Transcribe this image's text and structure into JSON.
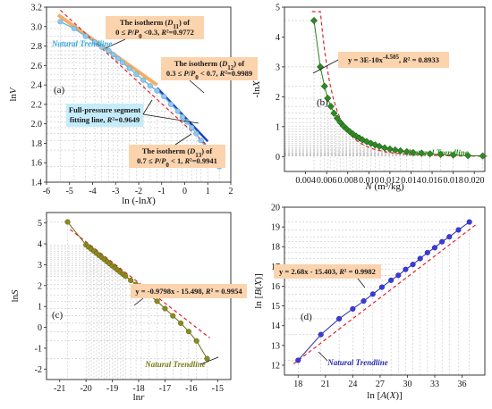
{
  "chart_data": [
    {
      "type": "scatter",
      "panel_label": "(a)",
      "xlabel": "ln (-lnX)",
      "ylabel": "lnV",
      "xlim": [
        -6,
        2
      ],
      "ylim": [
        1.4,
        3.2
      ],
      "xticks": [
        "-6",
        "-5",
        "-4",
        "-3",
        "-2",
        "-1",
        "0",
        "1",
        "2"
      ],
      "yticks": [
        "1.4",
        "1.6",
        "1.8",
        "2.0",
        "2.2",
        "2.4",
        "2.6",
        "2.8",
        "3.0",
        "3.2"
      ],
      "grid": true,
      "series": [
        {
          "name": "Natural Trendline",
          "x": [
            -5.4,
            -4.8,
            -4.3,
            -3.9,
            -3.6,
            -3.3,
            -3.1,
            -2.9,
            -2.7,
            -2.4,
            -2.1,
            -1.8,
            -1.5,
            -1.2,
            -0.9,
            -0.6,
            -0.3,
            -0.1,
            0.1,
            0.3,
            0.5,
            0.7,
            1.0,
            1.5
          ],
          "y": [
            3.05,
            2.98,
            2.9,
            2.84,
            2.79,
            2.75,
            2.71,
            2.67,
            2.63,
            2.57,
            2.51,
            2.45,
            2.39,
            2.34,
            2.28,
            2.2,
            2.13,
            2.07,
            2.02,
            1.96,
            1.9,
            1.83,
            1.73,
            1.56
          ]
        }
      ],
      "fits": [
        {
          "x": [
            -5.5,
            -1.2
          ],
          "y": [
            3.12,
            2.4
          ]
        },
        {
          "x": [
            -1.2,
            1.0
          ],
          "y": [
            2.37,
            1.82
          ]
        },
        {
          "x": [
            0.7,
            1.5
          ],
          "y": [
            1.85,
            1.58
          ]
        },
        {
          "x": [
            -5.4,
            1.6
          ],
          "y": [
            3.17,
            1.64
          ]
        }
      ],
      "annotations": [
        {
          "id": "d11",
          "text": [
            "The isotherm (D11) of",
            "0 ≤ P/P0 <0.3,  R²=0.9772"
          ]
        },
        {
          "id": "d12",
          "text": [
            "The isotherm (D12) of",
            "0.3 ≤ P/P0 < 0.7,  R²=0.9989"
          ]
        },
        {
          "id": "d13",
          "text": [
            "The isotherm (D13) of",
            "0.7 ≤ P/P0 < 1,  R²=0.9941"
          ]
        },
        {
          "id": "full",
          "text": [
            "Full-pressure segment",
            "fitting line,  R²=0.9649"
          ]
        }
      ],
      "trend_label": "Natural Trendline"
    },
    {
      "type": "scatter",
      "panel_label": "(b)",
      "xlabel": "N (m³/kg)",
      "ylabel": "-lnX",
      "xlim": [
        0.002,
        0.021
      ],
      "ylim": [
        -0.5,
        5
      ],
      "xticks": [
        "0.004",
        "0.006",
        "0.008",
        "0.010",
        "0.012",
        "0.014",
        "0.016",
        "0.018",
        "0.020"
      ],
      "yticks": [
        "0",
        "1",
        "2",
        "3",
        "4",
        "5"
      ],
      "grid": true,
      "series": [
        {
          "name": "Natural Trendline",
          "x": [
            0.0048,
            0.0054,
            0.0058,
            0.0061,
            0.0064,
            0.0067,
            0.007,
            0.0073,
            0.0076,
            0.0079,
            0.0082,
            0.0085,
            0.0088,
            0.0091,
            0.0094,
            0.0098,
            0.0102,
            0.0106,
            0.011,
            0.0115,
            0.012,
            0.0125,
            0.013,
            0.0136,
            0.0142,
            0.015,
            0.0158,
            0.0168,
            0.018,
            0.0194,
            0.0208
          ],
          "y": [
            4.55,
            3.0,
            2.35,
            1.95,
            1.68,
            1.45,
            1.28,
            1.14,
            1.02,
            0.92,
            0.83,
            0.75,
            0.68,
            0.62,
            0.56,
            0.5,
            0.44,
            0.39,
            0.34,
            0.29,
            0.25,
            0.22,
            0.19,
            0.16,
            0.13,
            0.11,
            0.09,
            0.07,
            0.05,
            0.03,
            0.02
          ]
        }
      ],
      "fit_equation": "y = 3E-10x^-4.505,  R² = 0.8933",
      "trend_label": "Natural Trendline"
    },
    {
      "type": "scatter",
      "panel_label": "(c)",
      "xlabel": "lnr",
      "ylabel": "lnS",
      "xlim": [
        -21.5,
        -14.5
      ],
      "ylim": [
        -2.5,
        5.5
      ],
      "xticks": [
        "-21",
        "-20",
        "-19",
        "-18",
        "-17",
        "-16",
        "-15"
      ],
      "yticks": [
        "-2",
        "-1",
        "0",
        "1",
        "2",
        "3",
        "4",
        "5"
      ],
      "grid": true,
      "series": [
        {
          "name": "Natural Trendline",
          "x": [
            -20.7,
            -20.0,
            -19.9,
            -19.8,
            -19.7,
            -19.6,
            -19.5,
            -19.4,
            -19.3,
            -19.2,
            -19.1,
            -19.0,
            -18.9,
            -18.8,
            -18.7,
            -18.6,
            -18.5,
            -18.3,
            -18.1,
            -17.9,
            -17.6,
            -17.3,
            -17.0,
            -16.7,
            -16.4,
            -16.1,
            -15.8,
            -15.4
          ],
          "y": [
            5.05,
            3.95,
            3.85,
            3.75,
            3.65,
            3.55,
            3.45,
            3.35,
            3.25,
            3.15,
            3.05,
            2.95,
            2.85,
            2.75,
            2.65,
            2.55,
            2.45,
            2.25,
            2.05,
            1.85,
            1.55,
            1.25,
            0.9,
            0.55,
            0.2,
            -0.2,
            -0.65,
            -1.5
          ]
        }
      ],
      "fit_equation": "y = -0.9798x - 15.498,  R² = 0.9954",
      "trend_label": "Natural Trendline"
    },
    {
      "type": "scatter",
      "panel_label": "(d)",
      "xlabel": "ln [A(X)]",
      "ylabel": "ln [B(X)]",
      "xlim": [
        16.5,
        38.5
      ],
      "ylim": [
        11.5,
        20
      ],
      "xticks": [
        "18",
        "21",
        "24",
        "27",
        "30",
        "33",
        "36"
      ],
      "yticks": [
        "12",
        "13",
        "14",
        "15",
        "16",
        "17",
        "18",
        "19",
        "20"
      ],
      "grid": true,
      "series": [
        {
          "name": "Natural Trendline",
          "x": [
            18.0,
            20.5,
            22.5,
            24.0,
            25.2,
            26.2,
            27.2,
            28.2,
            29.0,
            29.8,
            30.6,
            31.4,
            32.2,
            33.0,
            33.8,
            34.6,
            35.6,
            36.8
          ],
          "y": [
            12.25,
            13.55,
            14.35,
            14.85,
            15.25,
            15.6,
            15.95,
            16.3,
            16.55,
            16.85,
            17.1,
            17.4,
            17.7,
            17.95,
            18.25,
            18.5,
            18.85,
            19.25
          ]
        }
      ],
      "fit_equation": "y = 2.68x - 15.403,  R² = 0.9982",
      "trend_label": "Natural Trendline"
    }
  ]
}
